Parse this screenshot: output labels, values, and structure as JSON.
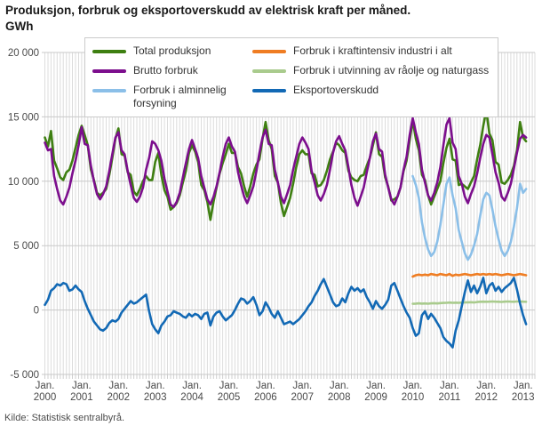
{
  "header": {
    "title_line1": "Produksjon, forbruk og eksportoverskudd av elektrisk kraft per måned.",
    "title_line2": "GWh"
  },
  "footer": {
    "source": "Kilde: Statistisk sentralbyrå."
  },
  "chart_data": {
    "type": "line",
    "title": "Produksjon, forbruk og eksportoverskudd av elektrisk kraft per måned. GWh",
    "x_unit": "month",
    "x_range": [
      "Jan. 2000",
      "Feb. 2013"
    ],
    "x_tick_prefix": "Jan.",
    "x_tick_years": [
      2000,
      2001,
      2002,
      2003,
      2004,
      2005,
      2006,
      2007,
      2008,
      2009,
      2010,
      2011,
      2012,
      2013
    ],
    "ylim": [
      -5000,
      20000
    ],
    "y_ticks": [
      -5000,
      0,
      5000,
      10000,
      15000,
      20000
    ],
    "y_tick_labels": [
      "-5 000",
      "0",
      "5 000",
      "10 000",
      "15 000",
      "20 000"
    ],
    "grid": {
      "vertical": "monthly",
      "horizontal": "every 5000 GWh"
    },
    "legend_position": "top",
    "series": [
      {
        "name": "Total produksjon",
        "color": "#3e7f11",
        "x_start_index": 0,
        "values": [
          13400,
          12700,
          13900,
          11600,
          11000,
          10300,
          10100,
          10700,
          10900,
          11600,
          12600,
          13600,
          14300,
          13600,
          12800,
          10900,
          10100,
          9100,
          8900,
          9100,
          9400,
          10500,
          11800,
          13300,
          14100,
          12100,
          12000,
          10700,
          10500,
          9200,
          8900,
          9400,
          10000,
          10400,
          10100,
          10100,
          11500,
          12200,
          10500,
          9300,
          8800,
          7800,
          8000,
          8300,
          8900,
          9900,
          10800,
          12200,
          12800,
          12300,
          11500,
          9700,
          9300,
          8400,
          7000,
          8400,
          9500,
          10600,
          11400,
          12100,
          12900,
          12200,
          12200,
          11100,
          10600,
          9600,
          8800,
          9600,
          10600,
          11300,
          11700,
          13300,
          14600,
          13200,
          12500,
          10400,
          9900,
          8300,
          7300,
          8000,
          8700,
          9800,
          11100,
          12100,
          12400,
          12100,
          12100,
          10600,
          10500,
          9600,
          9700,
          10100,
          10800,
          11700,
          12300,
          13000,
          12800,
          12400,
          12200,
          10800,
          10300,
          10100,
          10000,
          10400,
          10500,
          11200,
          11800,
          12800,
          13800,
          12100,
          11900,
          10300,
          9600,
          8500,
          8600,
          8800,
          9500,
          10800,
          11600,
          13200,
          14700,
          13300,
          12400,
          10500,
          10100,
          8900,
          8200,
          8800,
          9400,
          10000,
          11400,
          12600,
          13300,
          11700,
          11600,
          9700,
          9800,
          9600,
          9400,
          9900,
          10400,
          11700,
          12800,
          14300,
          15500,
          13700,
          13200,
          11500,
          11300,
          9900,
          9800,
          10100,
          10500,
          11200,
          12400,
          14600,
          13400,
          13100
        ]
      },
      {
        "name": "Forbruk i kraftintensiv industri i alt",
        "color": "#ef7d23",
        "x_start_index": 120,
        "values": [
          2600,
          2700,
          2750,
          2700,
          2750,
          2700,
          2800,
          2750,
          2700,
          2800,
          2750,
          2700,
          2800,
          2650,
          2750,
          2700,
          2750,
          2800,
          2750,
          2700,
          2750,
          2800,
          2750,
          2800,
          2750,
          2800,
          2750,
          2800,
          2750,
          2700,
          2750,
          2800,
          2750,
          2700,
          2750,
          2800,
          2750,
          2700
        ]
      },
      {
        "name": "Brutto forbruk",
        "color": "#7c0e8d",
        "x_start_index": 0,
        "values": [
          13000,
          12400,
          12500,
          10400,
          9400,
          8500,
          8200,
          8800,
          9500,
          10600,
          11600,
          12800,
          14200,
          12900,
          12800,
          11200,
          10000,
          9000,
          8600,
          9000,
          9600,
          10800,
          12100,
          13400,
          13800,
          12400,
          12100,
          10800,
          9700,
          8700,
          8400,
          8800,
          9500,
          10900,
          11800,
          13100,
          12900,
          12400,
          11600,
          10200,
          9200,
          8200,
          8000,
          8400,
          9100,
          10300,
          11400,
          12500,
          13200,
          12500,
          11800,
          10400,
          9500,
          8600,
          8200,
          8800,
          9600,
          10700,
          11900,
          12900,
          13400,
          12700,
          12300,
          10700,
          9700,
          8800,
          8300,
          8900,
          9600,
          10800,
          12200,
          13400,
          14000,
          12900,
          12800,
          10900,
          9900,
          8800,
          8300,
          9000,
          9700,
          10900,
          11900,
          12900,
          13400,
          13000,
          12500,
          10800,
          9900,
          8900,
          8500,
          9000,
          9700,
          10900,
          12200,
          13100,
          13500,
          12900,
          12400,
          11100,
          9700,
          8700,
          8100,
          8800,
          9500,
          10700,
          11800,
          13100,
          13700,
          12500,
          12300,
          10500,
          9500,
          8600,
          8200,
          8800,
          9500,
          10900,
          11900,
          13600,
          14900,
          13800,
          12900,
          10900,
          9900,
          8900,
          8500,
          9100,
          9900,
          11100,
          12800,
          14400,
          14900,
          13000,
          12500,
          10400,
          9800,
          8800,
          8300,
          9000,
          9600,
          10600,
          11800,
          12900,
          13600,
          13400,
          12100,
          10700,
          9900,
          8800,
          8500,
          9100,
          9800,
          11000,
          12200,
          13300,
          13600,
          13400
        ]
      },
      {
        "name": "Forbruk i utvinning av råolje og naturgass",
        "color": "#a9cb8d",
        "x_start_index": 120,
        "values": [
          480,
          500,
          520,
          500,
          510,
          490,
          520,
          530,
          510,
          540,
          550,
          560,
          580,
          560,
          570,
          560,
          580,
          590,
          600,
          610,
          590,
          620,
          640,
          650,
          640,
          650,
          660,
          650,
          640,
          630,
          650,
          660,
          650,
          640,
          660,
          670,
          650,
          640
        ]
      },
      {
        "name": "Forbruk i alminnelig forsyning",
        "color": "#8bbfe8",
        "x_start_index": 120,
        "values": [
          10400,
          9700,
          8700,
          6800,
          5600,
          4700,
          4200,
          4500,
          5300,
          6600,
          8200,
          9800,
          10300,
          8900,
          7900,
          6200,
          5300,
          4400,
          3900,
          4300,
          5000,
          5900,
          7300,
          8600,
          9100,
          8900,
          7800,
          6500,
          5500,
          4600,
          4200,
          4600,
          5300,
          6500,
          7900,
          9800,
          9100,
          9400
        ]
      },
      {
        "name": "Eksportoverskudd",
        "color": "#1269b5",
        "x_start_index": 0,
        "values": [
          400,
          800,
          1500,
          1700,
          2000,
          1900,
          2100,
          2000,
          1500,
          1600,
          1900,
          1600,
          1400,
          700,
          100,
          -400,
          -900,
          -1200,
          -1500,
          -1600,
          -1400,
          -1000,
          -800,
          -900,
          -700,
          -200,
          100,
          400,
          700,
          500,
          600,
          800,
          1000,
          1200,
          -100,
          -1100,
          -1500,
          -1800,
          -1200,
          -900,
          -500,
          -400,
          -100,
          -200,
          -300,
          -500,
          -600,
          -300,
          -500,
          -300,
          -400,
          -700,
          -300,
          -200,
          -1200,
          -500,
          -200,
          -100,
          -500,
          -800,
          -600,
          -400,
          0,
          500,
          900,
          800,
          500,
          700,
          1000,
          400,
          -400,
          -100,
          600,
          200,
          -300,
          -600,
          -100,
          -600,
          -1100,
          -1000,
          -900,
          -1100,
          -900,
          -700,
          -400,
          -100,
          300,
          600,
          1100,
          1500,
          2000,
          2400,
          1800,
          1200,
          600,
          300,
          400,
          900,
          600,
          1300,
          1800,
          1500,
          1700,
          1400,
          1600,
          1000,
          600,
          100,
          700,
          300,
          100,
          400,
          800,
          1900,
          2100,
          1500,
          900,
          300,
          -200,
          -600,
          -1400,
          -2000,
          -1800,
          -400,
          -100,
          -700,
          -300,
          -600,
          -1000,
          -1400,
          -2100,
          -2400,
          -2600,
          -2900,
          -1600,
          -800,
          300,
          1400,
          2300,
          1400,
          1900,
          1300,
          1800,
          2500,
          1300,
          1900,
          2100,
          1500,
          1800,
          1400,
          1700,
          1900,
          2100,
          2500,
          1600,
          500,
          -400,
          -1100
        ]
      }
    ]
  }
}
